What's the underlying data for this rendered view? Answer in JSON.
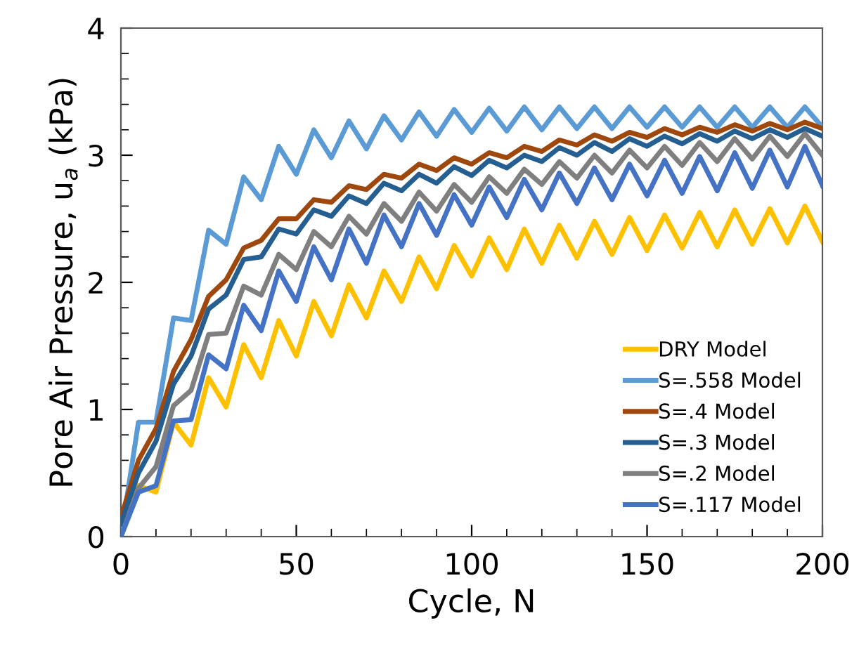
{
  "chart_data": {
    "type": "line",
    "xlabel": "Cycle, N",
    "ylabel": "Pore Air Pressure, u$_{a}$ (kPa)",
    "x": [
      0,
      5,
      10,
      15,
      20,
      25,
      30,
      35,
      40,
      45,
      50,
      55,
      60,
      65,
      70,
      75,
      80,
      85,
      90,
      95,
      100,
      105,
      110,
      115,
      120,
      125,
      130,
      135,
      140,
      145,
      150,
      155,
      160,
      165,
      170,
      175,
      180,
      185,
      190,
      195,
      200
    ],
    "xlim": [
      0,
      200
    ],
    "xticks": [
      0,
      50,
      100,
      150,
      200
    ],
    "ylim": [
      0,
      4
    ],
    "yticks": [
      0,
      1,
      2,
      3,
      4
    ],
    "grid": false,
    "legend": "bottom right",
    "marker": "none",
    "line_style": "solid",
    "series": [
      {
        "name": "DRY Model",
        "color": "#ffc000",
        "values": [
          0,
          0.4,
          0.35,
          0.9,
          0.72,
          1.25,
          1.02,
          1.51,
          1.25,
          1.7,
          1.42,
          1.85,
          1.58,
          1.98,
          1.72,
          2.09,
          1.85,
          2.2,
          1.95,
          2.29,
          2.05,
          2.35,
          2.1,
          2.42,
          2.15,
          2.45,
          2.19,
          2.48,
          2.22,
          2.51,
          2.25,
          2.53,
          2.27,
          2.55,
          2.28,
          2.57,
          2.3,
          2.58,
          2.31,
          2.6,
          2.32
        ]
      },
      {
        "name": "S=.558 Model",
        "color": "#5b9bd5",
        "values": [
          0,
          0.9,
          0.9,
          1.72,
          1.7,
          2.41,
          2.3,
          2.83,
          2.65,
          3.07,
          2.85,
          3.2,
          2.98,
          3.27,
          3.05,
          3.31,
          3.12,
          3.34,
          3.15,
          3.36,
          3.18,
          3.37,
          3.19,
          3.38,
          3.2,
          3.38,
          3.21,
          3.38,
          3.21,
          3.38,
          3.22,
          3.38,
          3.22,
          3.38,
          3.22,
          3.38,
          3.22,
          3.38,
          3.22,
          3.38,
          3.22
        ]
      },
      {
        "name": "S=.4 Model",
        "color": "#9e480e",
        "values": [
          0.15,
          0.6,
          0.85,
          1.3,
          1.55,
          1.89,
          2.02,
          2.27,
          2.33,
          2.5,
          2.5,
          2.65,
          2.63,
          2.76,
          2.73,
          2.85,
          2.82,
          2.93,
          2.88,
          2.98,
          2.93,
          3.02,
          2.98,
          3.07,
          3.03,
          3.12,
          3.08,
          3.16,
          3.11,
          3.18,
          3.14,
          3.21,
          3.16,
          3.22,
          3.18,
          3.24,
          3.19,
          3.25,
          3.2,
          3.26,
          3.21
        ]
      },
      {
        "name": "S=.3 Model",
        "color": "#255e91",
        "values": [
          0.1,
          0.5,
          0.75,
          1.2,
          1.42,
          1.79,
          1.9,
          2.18,
          2.2,
          2.42,
          2.38,
          2.57,
          2.52,
          2.68,
          2.62,
          2.78,
          2.72,
          2.85,
          2.78,
          2.91,
          2.84,
          2.96,
          2.9,
          3.0,
          2.95,
          3.06,
          3.0,
          3.1,
          3.03,
          3.13,
          3.07,
          3.15,
          3.09,
          3.17,
          3.11,
          3.19,
          3.13,
          3.2,
          3.14,
          3.21,
          3.15
        ]
      },
      {
        "name": "S=.2 Model",
        "color": "#7f7f7f",
        "values": [
          0,
          0.38,
          0.55,
          1.03,
          1.15,
          1.59,
          1.6,
          1.97,
          1.9,
          2.22,
          2.1,
          2.4,
          2.28,
          2.52,
          2.38,
          2.62,
          2.48,
          2.71,
          2.56,
          2.77,
          2.63,
          2.83,
          2.7,
          2.89,
          2.77,
          2.95,
          2.82,
          3.0,
          2.86,
          3.04,
          2.9,
          3.07,
          2.92,
          3.1,
          2.95,
          3.13,
          2.97,
          3.15,
          2.99,
          3.17,
          3.0
        ]
      },
      {
        "name": "S=.117 Model",
        "color": "#4472c4",
        "values": [
          0,
          0.35,
          0.4,
          0.91,
          0.92,
          1.43,
          1.32,
          1.82,
          1.62,
          2.09,
          1.85,
          2.28,
          2.02,
          2.42,
          2.15,
          2.53,
          2.28,
          2.62,
          2.37,
          2.69,
          2.45,
          2.75,
          2.51,
          2.81,
          2.57,
          2.86,
          2.62,
          2.9,
          2.65,
          2.93,
          2.68,
          2.96,
          2.7,
          2.99,
          2.72,
          3.02,
          2.74,
          3.04,
          2.75,
          3.07,
          2.76
        ]
      }
    ]
  }
}
